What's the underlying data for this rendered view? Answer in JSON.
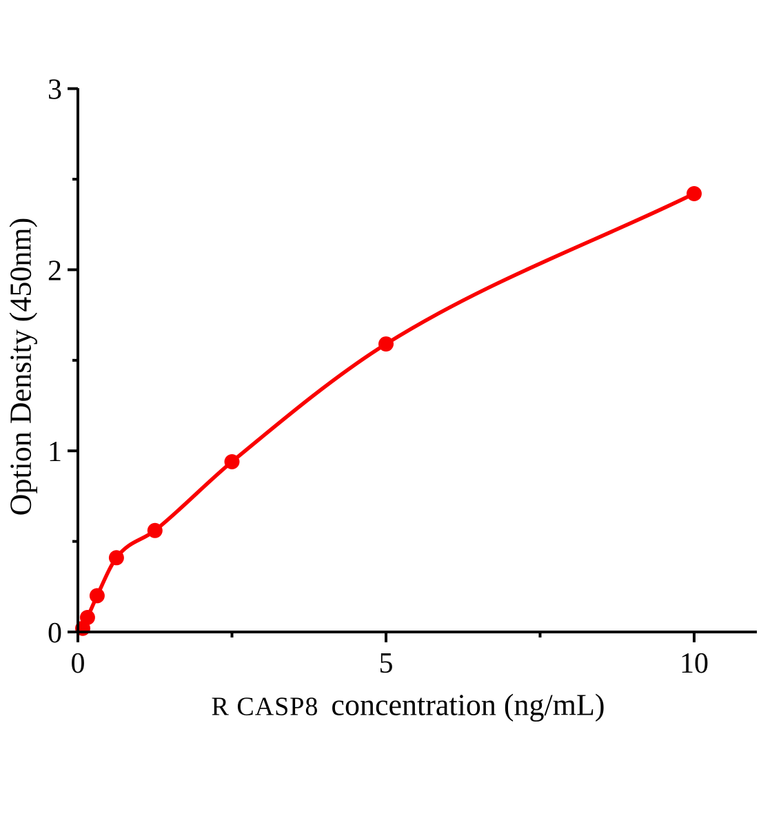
{
  "chart_data": {
    "type": "scatter",
    "title": "",
    "xlabel": "R CASP8  concentration（ng/mL）",
    "xlabel_prefix": "R CASP8",
    "xlabel_main": "concentration（ng/mL）",
    "ylabel": "Option Density（450nm）",
    "x": [
      0.078,
      0.156,
      0.312,
      0.625,
      1.25,
      2.5,
      5,
      10
    ],
    "y": [
      0.02,
      0.08,
      0.2,
      0.41,
      0.56,
      0.94,
      1.59,
      2.42
    ],
    "curve_starts_at_origin": true,
    "xlim": [
      0,
      11.0
    ],
    "ylim": [
      0,
      3
    ],
    "x_major_ticks": [
      0,
      5,
      10
    ],
    "x_minor_ticks": [
      2.5,
      7.5
    ],
    "y_major_ticks": [
      0,
      1,
      2,
      3
    ],
    "y_minor_ticks": [
      0.5,
      1.5,
      2.5
    ],
    "grid": false,
    "legend": false,
    "marker_color": "#f90000",
    "line_color": "#f90000",
    "axis_color": "#000000",
    "background_color": "#ffffff"
  }
}
